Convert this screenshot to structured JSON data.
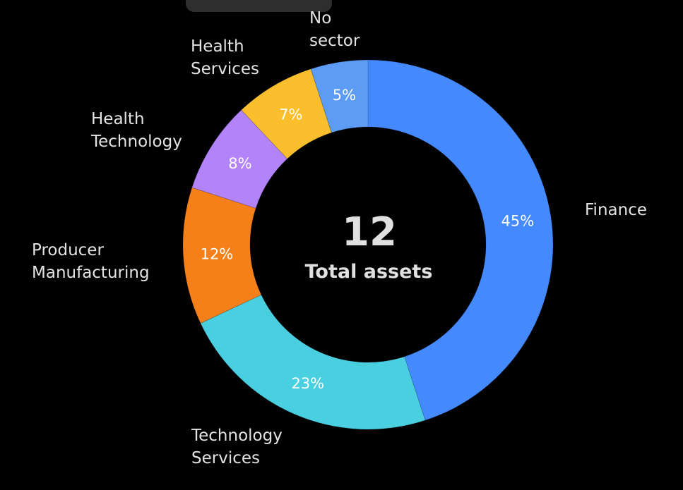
{
  "chart_data": {
    "type": "pie",
    "donut": true,
    "center_value": "12",
    "center_label": "Total assets",
    "categories": [
      "Finance",
      "Technology Services",
      "Producer Manufacturing",
      "Health Technology",
      "Health Services",
      "No sector"
    ],
    "label_lines": [
      [
        "Finance"
      ],
      [
        "Technology",
        "Services"
      ],
      [
        "Producer",
        "Manufacturing"
      ],
      [
        "Health",
        "Technology"
      ],
      [
        "Health",
        "Services"
      ],
      [
        "No",
        "sector"
      ]
    ],
    "values": [
      45,
      23,
      12,
      8,
      7,
      5
    ],
    "value_labels": [
      "45%",
      "23%",
      "12%",
      "8%",
      "7%",
      "5%"
    ],
    "colors": [
      "#4589FF",
      "#4ACFE0",
      "#F58019",
      "#B383FA",
      "#FBBF2E",
      "#5C9CF5"
    ]
  }
}
